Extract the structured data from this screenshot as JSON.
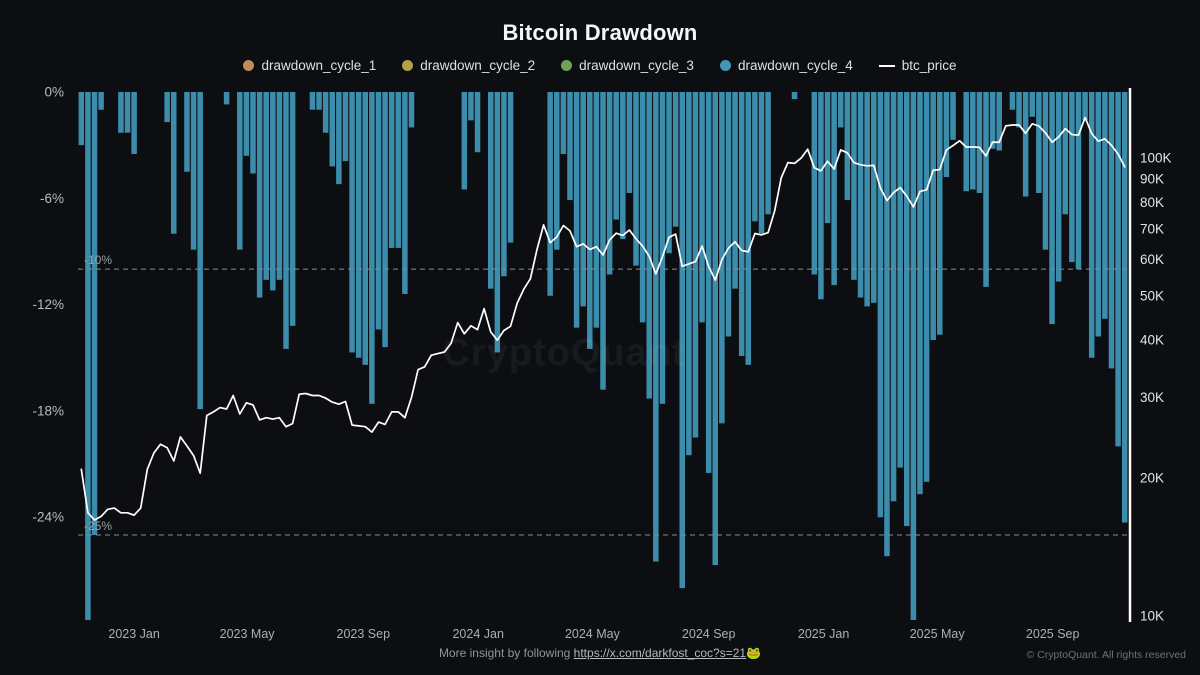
{
  "header": {
    "title": "Bitcoin Drawdown"
  },
  "legend": {
    "items": [
      {
        "label": "drawdown_cycle_1",
        "color": "#c58a5a",
        "marker": "dot"
      },
      {
        "label": "drawdown_cycle_2",
        "color": "#b3a24b",
        "marker": "dot"
      },
      {
        "label": "drawdown_cycle_3",
        "color": "#6fa353",
        "marker": "dot"
      },
      {
        "label": "drawdown_cycle_4",
        "color": "#4596b4",
        "marker": "dot"
      },
      {
        "label": "btc_price",
        "color": "#ffffff",
        "marker": "line"
      }
    ]
  },
  "watermark": {
    "text": "CryptoQuant"
  },
  "footer": {
    "prefix": "More insight by following ",
    "link": "https://x.com/darkfost_coc?s=21",
    "emoji": "🐸",
    "copyright": "© CryptoQuant. All rights reserved"
  },
  "chart_data": {
    "type": "combo",
    "title": "Bitcoin Drawdown",
    "x": {
      "start": "2022-11-06",
      "step_days": 7,
      "count": 159,
      "end": "2025-11-16"
    },
    "x_ticks": [
      {
        "label": "2023 Jan",
        "index": 8
      },
      {
        "label": "2023 May",
        "index": 25.1
      },
      {
        "label": "2023 Sep",
        "index": 42.7
      },
      {
        "label": "2024 Jan",
        "index": 60.1
      },
      {
        "label": "2024 May",
        "index": 77.4
      },
      {
        "label": "2024 Sep",
        "index": 95.0
      },
      {
        "label": "2025 Jan",
        "index": 112.4
      },
      {
        "label": "2025 May",
        "index": 129.6
      },
      {
        "label": "2025 Sep",
        "index": 147.1
      }
    ],
    "left_axis": {
      "unit": "%",
      "ticks": [
        0,
        -6,
        -12,
        -18,
        -24
      ],
      "range": [
        0,
        -29.8
      ],
      "ref_lines": [
        {
          "value": -10,
          "label": "-10%"
        },
        {
          "value": -25,
          "label": "-25%"
        }
      ]
    },
    "right_axis": {
      "unit": "K",
      "scale": "log",
      "ticks": [
        100,
        90,
        80,
        70,
        60,
        50,
        40,
        30,
        20,
        10
      ],
      "range": [
        139.3,
        9.8
      ]
    },
    "series": [
      {
        "name": "drawdown_cycle_4",
        "type": "bar",
        "axis": "left",
        "unit": "percent",
        "color": "#3c8dab",
        "values": [
          -3,
          -75,
          -25,
          -1,
          0,
          0,
          -2.3,
          -2.3,
          -3.5,
          0,
          0,
          0,
          0,
          -1.7,
          -8,
          0,
          -4.5,
          -8.9,
          -17.9,
          0,
          0,
          0,
          -0.7,
          0,
          -8.9,
          -3.6,
          -4.6,
          -11.6,
          -10.6,
          -11.2,
          -10.6,
          -14.5,
          -13.2,
          0,
          0,
          -1,
          -1,
          -2.3,
          -4.2,
          -5.2,
          -3.9,
          -14.7,
          -15,
          -15.4,
          -17.6,
          -13.4,
          -14.4,
          -8.8,
          -8.8,
          -11.4,
          -2,
          0,
          0,
          0,
          0,
          0,
          0,
          0,
          -5.5,
          -1.6,
          -3.4,
          0,
          -11.1,
          -14.7,
          -10.4,
          -8.5,
          0,
          0,
          0,
          0,
          0,
          -11.5,
          -8.9,
          -3.5,
          -6.1,
          -13.3,
          -12.1,
          -14.5,
          -13.3,
          -16.8,
          -10.3,
          -7.2,
          -8.3,
          -5.7,
          -9.8,
          -13,
          -17.3,
          -26.5,
          -17.6,
          -9.1,
          -7.6,
          -28,
          -20.5,
          -19.5,
          -13,
          -21.5,
          -26.7,
          -18.7,
          -13.8,
          -11.1,
          -14.9,
          -15.4,
          -7.3,
          -8,
          -6.9,
          0,
          0,
          0,
          -0.4,
          0,
          0,
          -10.3,
          -11.7,
          -7.4,
          -10.9,
          -2,
          -6.1,
          -10.6,
          -11.6,
          -12.1,
          -11.9,
          -24,
          -26.2,
          -23.1,
          -21.2,
          -24.5,
          -30,
          -22.7,
          -22,
          -14,
          -13.7,
          -4.8,
          -2.7,
          0,
          -5.6,
          -5.5,
          -5.7,
          -11,
          -3.2,
          -3.3,
          0,
          -1,
          -2,
          -5.9,
          -1.4,
          -5.7,
          -8.9,
          -13.1,
          -10.7,
          -6.9,
          -9.6,
          -10,
          -1.6,
          -15,
          -13.8,
          -12.8,
          -15.6,
          -20,
          -24.3
        ]
      },
      {
        "name": "btc_price",
        "type": "line",
        "axis": "right",
        "unit": "thousand_usd",
        "color": "#ffffff",
        "values": [
          20.9,
          16.8,
          16.2,
          16.5,
          17.1,
          17.2,
          16.8,
          16.8,
          16.6,
          17.2,
          20.9,
          22.7,
          23.7,
          23.3,
          21.8,
          24.6,
          23.5,
          22.4,
          20.5,
          27.4,
          27.9,
          28.5,
          28.3,
          30.3,
          27.6,
          29.2,
          28.9,
          26.8,
          27.1,
          26.9,
          27.1,
          25.9,
          26.3,
          30.5,
          30.6,
          30.3,
          30.3,
          29.9,
          29.3,
          29.0,
          29.4,
          26.1,
          26.0,
          25.9,
          25.2,
          26.5,
          26.2,
          27.9,
          27.9,
          27.1,
          30.0,
          34.5,
          35.0,
          37.1,
          37.4,
          37.7,
          39.4,
          43.7,
          41.3,
          43.0,
          42.2,
          46.9,
          41.7,
          40.0,
          42.0,
          42.9,
          48.2,
          51.7,
          54.5,
          63.1,
          71.4,
          65.3,
          67.2,
          71.2,
          69.3,
          64.0,
          64.9,
          63.1,
          64.0,
          61.4,
          66.2,
          68.5,
          67.7,
          69.6,
          66.6,
          64.2,
          61.0,
          55.8,
          60.8,
          67.1,
          68.2,
          58.0,
          58.7,
          59.4,
          64.2,
          57.9,
          54.1,
          60.0,
          63.6,
          65.6,
          62.8,
          62.4,
          68.4,
          67.9,
          68.7,
          76.7,
          90.6,
          97.7,
          97.3,
          99.9,
          104.5,
          95.2,
          93.7,
          98.3,
          94.6,
          104.1,
          102.6,
          97.7,
          96.6,
          96.1,
          96.3,
          86.0,
          80.7,
          84.0,
          86.1,
          82.5,
          78.2,
          84.5,
          85.2,
          94.0,
          94.3,
          104.1,
          106.4,
          109.0,
          105.6,
          105.7,
          105.5,
          101.0,
          108.3,
          108.2,
          117.5,
          118.0,
          118.0,
          113.2,
          118.7,
          117.4,
          113.4,
          108.2,
          111.2,
          115.9,
          112.5,
          112.1,
          122.5,
          113.0,
          108.8,
          110.1,
          106.5,
          102.0,
          95.6
        ]
      }
    ]
  }
}
